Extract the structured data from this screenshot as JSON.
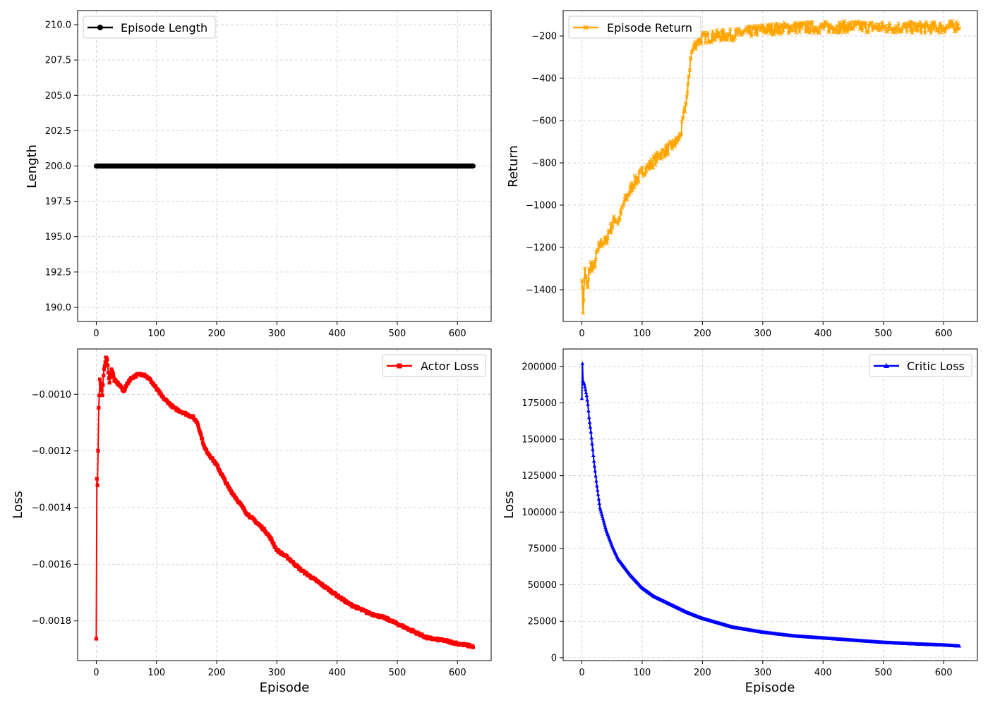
{
  "chart_data": [
    {
      "id": "length",
      "type": "line",
      "title": "",
      "xlabel": "",
      "ylabel": "Length",
      "xlim": [
        -31,
        656
      ],
      "ylim": [
        189.0,
        211.0
      ],
      "xticks": [
        0,
        100,
        200,
        300,
        400,
        500,
        600
      ],
      "yticks": [
        190.0,
        192.5,
        195.0,
        197.5,
        200.0,
        202.5,
        205.0,
        207.5,
        210.0
      ],
      "ytick_decimals": 1,
      "grid": true,
      "legend": {
        "position": "top-left",
        "entries": [
          "Episode Length"
        ]
      },
      "series": [
        {
          "name": "Episode Length",
          "color": "#000000",
          "marker": "circle",
          "points": [
            [
              0,
              200
            ],
            [
              626,
              200
            ]
          ],
          "n": 627
        }
      ]
    },
    {
      "id": "return",
      "type": "line",
      "title": "",
      "xlabel": "",
      "ylabel": "Return",
      "xlim": [
        -31,
        656
      ],
      "ylim": [
        -1550,
        -80
      ],
      "xticks": [
        0,
        100,
        200,
        300,
        400,
        500,
        600
      ],
      "yticks": [
        -1400,
        -1200,
        -1000,
        -800,
        -600,
        -400,
        -200
      ],
      "ytick_decimals": 0,
      "grid": true,
      "legend": {
        "position": "top-left",
        "entries": [
          "Episode Return"
        ]
      },
      "series": [
        {
          "name": "Episode Return",
          "color": "#ffa500",
          "marker": "x",
          "points": [
            [
              0,
              -1330
            ],
            [
              2,
              -1500
            ],
            [
              5,
              -1300
            ],
            [
              8,
              -1380
            ],
            [
              10,
              -1400
            ],
            [
              12,
              -1320
            ],
            [
              15,
              -1280
            ],
            [
              20,
              -1300
            ],
            [
              25,
              -1230
            ],
            [
              30,
              -1190
            ],
            [
              35,
              -1170
            ],
            [
              40,
              -1180
            ],
            [
              45,
              -1120
            ],
            [
              50,
              -1100
            ],
            [
              55,
              -1060
            ],
            [
              60,
              -1080
            ],
            [
              65,
              -1040
            ],
            [
              70,
              -990
            ],
            [
              75,
              -960
            ],
            [
              80,
              -930
            ],
            [
              85,
              -900
            ],
            [
              90,
              -880
            ],
            [
              95,
              -870
            ],
            [
              100,
              -840
            ],
            [
              110,
              -820
            ],
            [
              120,
              -790
            ],
            [
              130,
              -760
            ],
            [
              140,
              -740
            ],
            [
              150,
              -720
            ],
            [
              160,
              -690
            ],
            [
              165,
              -650
            ],
            [
              170,
              -560
            ],
            [
              175,
              -470
            ],
            [
              178,
              -390
            ],
            [
              180,
              -300
            ],
            [
              185,
              -260
            ],
            [
              190,
              -230
            ],
            [
              200,
              -210
            ],
            [
              220,
              -200
            ],
            [
              250,
              -195
            ],
            [
              280,
              -180
            ],
            [
              300,
              -170
            ],
            [
              350,
              -160
            ],
            [
              400,
              -160
            ],
            [
              450,
              -155
            ],
            [
              500,
              -160
            ],
            [
              550,
              -160
            ],
            [
              600,
              -160
            ],
            [
              626,
              -150
            ]
          ],
          "noise": 28,
          "n": 627
        }
      ]
    },
    {
      "id": "actor",
      "type": "line",
      "title": "",
      "xlabel": "Episode",
      "ylabel": "Loss",
      "xlim": [
        -31,
        656
      ],
      "ylim": [
        -0.00194,
        -0.00084
      ],
      "xticks": [
        0,
        100,
        200,
        300,
        400,
        500,
        600
      ],
      "yticks": [
        -0.0018,
        -0.0016,
        -0.0014,
        -0.0012,
        -0.001
      ],
      "ytick_decimals": 4,
      "grid": true,
      "legend": {
        "position": "top-right",
        "entries": [
          "Actor Loss"
        ]
      },
      "series": [
        {
          "name": "Actor Loss",
          "color": "#ff0000",
          "marker": "square",
          "points": [
            [
              0,
              -0.00186
            ],
            [
              1,
              -0.0013
            ],
            [
              2,
              -0.00132
            ],
            [
              3,
              -0.0012
            ],
            [
              4,
              -0.00105
            ],
            [
              6,
              -0.00095
            ],
            [
              8,
              -0.00098
            ],
            [
              10,
              -0.001
            ],
            [
              12,
              -0.00093
            ],
            [
              14,
              -0.0009
            ],
            [
              16,
              -0.00087
            ],
            [
              18,
              -0.00088
            ],
            [
              20,
              -0.00092
            ],
            [
              22,
              -0.00096
            ],
            [
              25,
              -0.00091
            ],
            [
              28,
              -0.00093
            ],
            [
              30,
              -0.00095
            ],
            [
              35,
              -0.00096
            ],
            [
              40,
              -0.00097
            ],
            [
              45,
              -0.00099
            ],
            [
              50,
              -0.00097
            ],
            [
              55,
              -0.00095
            ],
            [
              60,
              -0.00094
            ],
            [
              70,
              -0.00093
            ],
            [
              80,
              -0.00093
            ],
            [
              90,
              -0.00095
            ],
            [
              100,
              -0.00098
            ],
            [
              110,
              -0.00101
            ],
            [
              120,
              -0.00103
            ],
            [
              130,
              -0.00105
            ],
            [
              140,
              -0.00106
            ],
            [
              150,
              -0.00107
            ],
            [
              160,
              -0.00108
            ],
            [
              168,
              -0.0011
            ],
            [
              172,
              -0.00113
            ],
            [
              176,
              -0.00116
            ],
            [
              180,
              -0.00119
            ],
            [
              190,
              -0.00122
            ],
            [
              200,
              -0.00125
            ],
            [
              210,
              -0.00129
            ],
            [
              220,
              -0.00133
            ],
            [
              230,
              -0.00136
            ],
            [
              240,
              -0.00139
            ],
            [
              250,
              -0.00142
            ],
            [
              260,
              -0.00144
            ],
            [
              270,
              -0.00146
            ],
            [
              280,
              -0.00148
            ],
            [
              290,
              -0.00151
            ],
            [
              300,
              -0.00155
            ],
            [
              320,
              -0.00158
            ],
            [
              340,
              -0.00162
            ],
            [
              360,
              -0.00165
            ],
            [
              380,
              -0.00168
            ],
            [
              400,
              -0.00171
            ],
            [
              420,
              -0.00174
            ],
            [
              450,
              -0.00177
            ],
            [
              480,
              -0.00179
            ],
            [
              500,
              -0.00181
            ],
            [
              520,
              -0.00183
            ],
            [
              550,
              -0.00186
            ],
            [
              580,
              -0.00187
            ],
            [
              600,
              -0.00188
            ],
            [
              626,
              -0.00189
            ]
          ],
          "noise": 4e-06,
          "n": 627
        }
      ]
    },
    {
      "id": "critic",
      "type": "line",
      "title": "",
      "xlabel": "Episode",
      "ylabel": "Loss",
      "xlim": [
        -31,
        656
      ],
      "ylim": [
        -2000,
        212000
      ],
      "xticks": [
        0,
        100,
        200,
        300,
        400,
        500,
        600
      ],
      "yticks": [
        0,
        25000,
        50000,
        75000,
        100000,
        125000,
        150000,
        175000,
        200000
      ],
      "ytick_decimals": 0,
      "grid": true,
      "legend": {
        "position": "top-right",
        "entries": [
          "Critic Loss"
        ]
      },
      "series": [
        {
          "name": "Critic Loss",
          "color": "#0000ff",
          "marker": "triangle",
          "points": [
            [
              0,
              178000
            ],
            [
              1,
              202000
            ],
            [
              2,
              190000
            ],
            [
              4,
              188000
            ],
            [
              6,
              184000
            ],
            [
              8,
              180000
            ],
            [
              10,
              174000
            ],
            [
              12,
              165000
            ],
            [
              15,
              155000
            ],
            [
              20,
              135000
            ],
            [
              25,
              118000
            ],
            [
              30,
              103000
            ],
            [
              40,
              88000
            ],
            [
              50,
              77000
            ],
            [
              60,
              68000
            ],
            [
              80,
              57000
            ],
            [
              100,
              48000
            ],
            [
              120,
              42000
            ],
            [
              150,
              36000
            ],
            [
              175,
              31000
            ],
            [
              200,
              27000
            ],
            [
              250,
              21000
            ],
            [
              300,
              17500
            ],
            [
              350,
              15000
            ],
            [
              400,
              13500
            ],
            [
              450,
              12000
            ],
            [
              500,
              10500
            ],
            [
              550,
              9500
            ],
            [
              600,
              8700
            ],
            [
              626,
              8000
            ]
          ],
          "noise": 0,
          "n": 627
        }
      ]
    }
  ]
}
